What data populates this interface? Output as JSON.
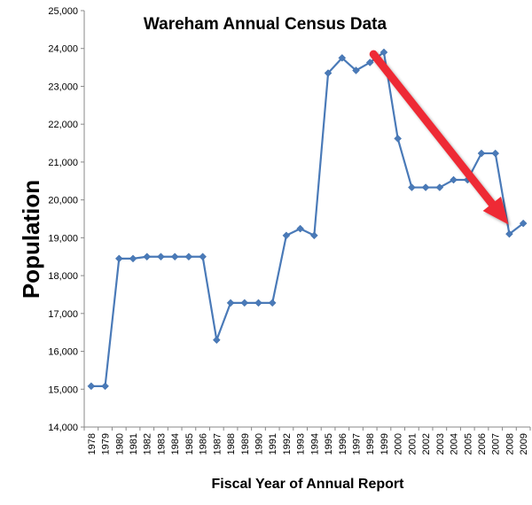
{
  "chart_data": {
    "type": "line",
    "title": "Wareham Annual Census Data",
    "xlabel": "Fiscal Year of Annual Report",
    "ylabel": "Population",
    "ylim": [
      14000,
      25000
    ],
    "ytick_step": 1000,
    "grid": false,
    "legend": "none",
    "colors": {
      "line": "#4a7ab8",
      "marker": "#4a7ab8",
      "arrow": "#ee2b34",
      "axis": "#888888"
    },
    "categories": [
      "1978",
      "1979",
      "1980",
      "1981",
      "1982",
      "1983",
      "1984",
      "1985",
      "1986",
      "1987",
      "1988",
      "1989",
      "1990",
      "1991",
      "1992",
      "1993",
      "1994",
      "1995",
      "1996",
      "1997",
      "1998",
      "1999",
      "2000",
      "2001",
      "2002",
      "2003",
      "2004",
      "2005",
      "2006",
      "2007",
      "2008",
      "2009"
    ],
    "series": [
      {
        "values": [
          15080,
          15080,
          18450,
          18450,
          18500,
          18500,
          18500,
          18500,
          18500,
          16300,
          17280,
          17280,
          17280,
          17280,
          19060,
          19240,
          19060,
          23350,
          23750,
          23420,
          23630,
          23900,
          21620,
          20330,
          20330,
          20330,
          20530,
          20530,
          21230,
          21230,
          19100,
          19380
        ]
      }
    ],
    "annotations": [
      {
        "type": "arrow",
        "from": {
          "x": "1998",
          "y": 23850
        },
        "to": {
          "x": "2008",
          "y": 19350
        }
      }
    ]
  }
}
